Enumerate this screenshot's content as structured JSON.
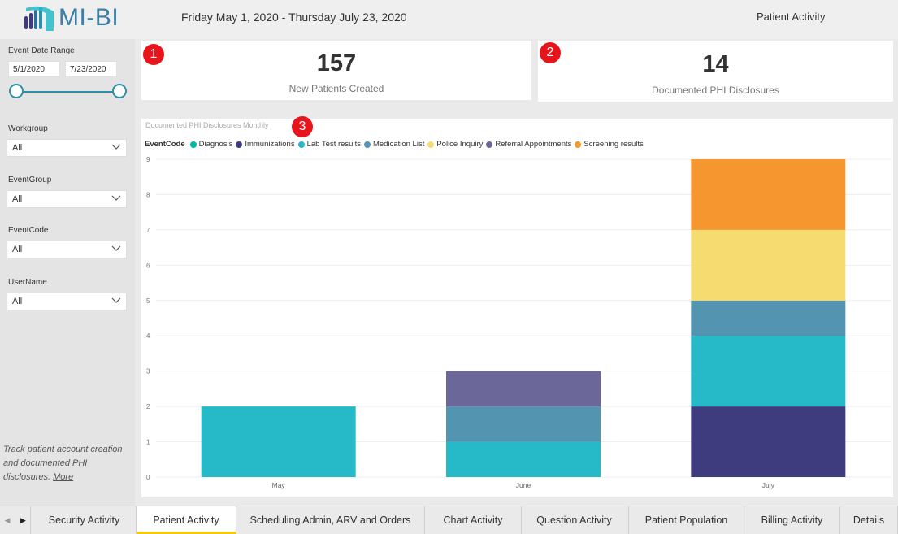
{
  "header": {
    "logo_text": "MI-BI",
    "date_range": "Friday May 1, 2020 - Thursday July 23, 2020",
    "page_title": "Patient Activity"
  },
  "sidebar": {
    "event_date_range_label": "Event Date Range",
    "start_date": "5/1/2020",
    "end_date": "7/23/2020",
    "filters": [
      {
        "label": "Workgroup",
        "value": "All"
      },
      {
        "label": "EventGroup",
        "value": "All"
      },
      {
        "label": "EventCode",
        "value": "All"
      },
      {
        "label": "UserName",
        "value": "All"
      }
    ],
    "description": "Track patient account creation and documented PHI disclosures.",
    "more_link": "More"
  },
  "kpis": [
    {
      "value": "157",
      "label": "New Patients Created",
      "badge": "1"
    },
    {
      "value": "14",
      "label": "Documented PHI Disclosures",
      "badge": "2"
    }
  ],
  "chart_badge": "3",
  "chart_data": {
    "type": "bar",
    "stacked": true,
    "title": "Documented PHI Disclosures Monthly",
    "legend_title": "EventCode",
    "legend_position": "top-left",
    "categories": [
      "May",
      "June",
      "July"
    ],
    "ylim": [
      0,
      9
    ],
    "yticks": [
      "0",
      "1",
      "2",
      "3",
      "4",
      "5",
      "6",
      "7",
      "8",
      "9"
    ],
    "grid": true,
    "series": [
      {
        "name": "Diagnosis",
        "color": "#01b8aa",
        "values": [
          0,
          0,
          0
        ]
      },
      {
        "name": "Immunizations",
        "color": "#3e3b7e",
        "values": [
          0,
          0,
          2
        ]
      },
      {
        "name": "Lab Test results",
        "color": "#26bac8",
        "values": [
          2,
          1,
          2
        ]
      },
      {
        "name": "Medication List",
        "color": "#5394b1",
        "values": [
          0,
          1,
          1
        ]
      },
      {
        "name": "Police Inquiry",
        "color": "#f6dc70",
        "values": [
          0,
          0,
          2
        ]
      },
      {
        "name": "Referral Appointments",
        "color": "#6b6899",
        "values": [
          0,
          1,
          0
        ]
      },
      {
        "name": "Screening results",
        "color": "#f5962e",
        "values": [
          0,
          0,
          2
        ]
      }
    ]
  },
  "tabs": [
    {
      "label": "Security Activity",
      "active": false
    },
    {
      "label": "Patient Activity",
      "active": true
    },
    {
      "label": "Scheduling Admin, ARV and Orders",
      "active": false
    },
    {
      "label": "Chart Activity",
      "active": false
    },
    {
      "label": "Question Activity",
      "active": false
    },
    {
      "label": "Patient Population",
      "active": false
    },
    {
      "label": "Billing Activity",
      "active": false
    },
    {
      "label": "Details",
      "active": false
    }
  ],
  "icons": {
    "prev": "left-arrow-icon",
    "next": "right-arrow-icon",
    "dropdown": "chevron-down-icon"
  }
}
